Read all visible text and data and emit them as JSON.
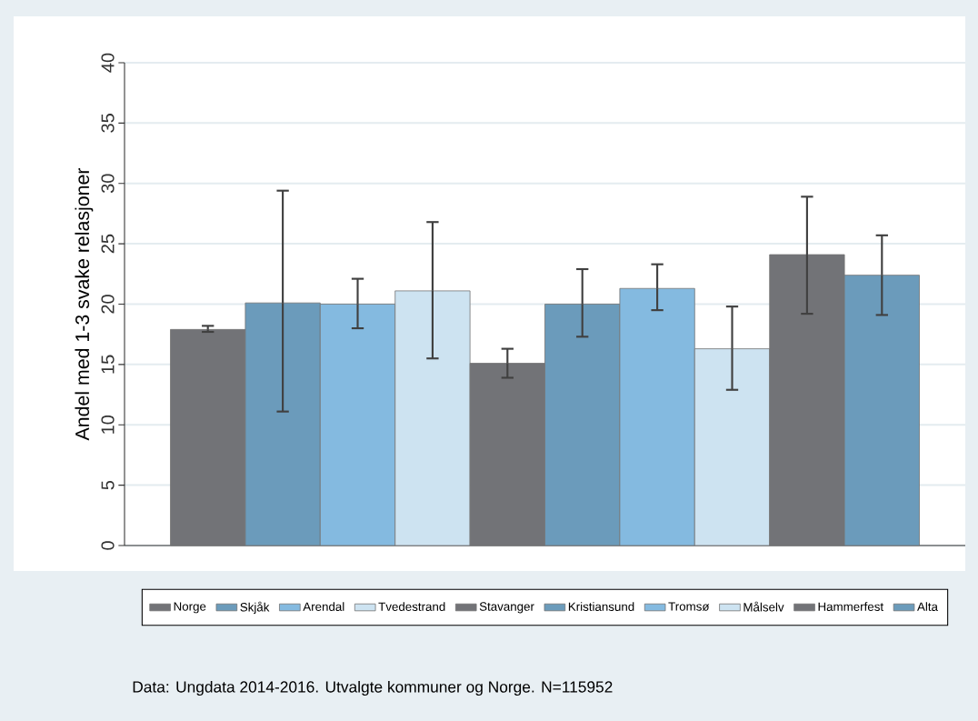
{
  "chart_data": {
    "type": "bar",
    "ylabel": "Andel med 1-3 svake relasjoner",
    "categories": [
      null
    ],
    "series": [
      {
        "name": "Norge",
        "color": "#727377",
        "values": [
          17.9
        ],
        "errors": [
          [
            17.7,
            18.2
          ]
        ]
      },
      {
        "name": "Skjåk",
        "color": "#6b9bbb",
        "values": [
          20.1
        ],
        "errors": [
          [
            11.1,
            29.4
          ]
        ]
      },
      {
        "name": "Arendal",
        "color": "#84bae0",
        "values": [
          20.0
        ],
        "errors": [
          [
            18.0,
            22.1
          ]
        ]
      },
      {
        "name": "Tvedestrand",
        "color": "#cde3f1",
        "values": [
          21.1
        ],
        "errors": [
          [
            15.5,
            26.8
          ]
        ]
      },
      {
        "name": "Stavanger",
        "color": "#727377",
        "values": [
          15.1
        ],
        "errors": [
          [
            13.9,
            16.3
          ]
        ]
      },
      {
        "name": "Kristiansund",
        "color": "#6b9bbb",
        "values": [
          20.0
        ],
        "errors": [
          [
            17.3,
            22.9
          ]
        ]
      },
      {
        "name": "Tromsø",
        "color": "#84bae0",
        "values": [
          21.3
        ],
        "errors": [
          [
            19.5,
            23.3
          ]
        ]
      },
      {
        "name": "Målselv",
        "color": "#cde3f1",
        "values": [
          16.3
        ],
        "errors": [
          [
            12.9,
            19.8
          ]
        ]
      },
      {
        "name": "Hammerfest",
        "color": "#727377",
        "values": [
          24.1
        ],
        "errors": [
          [
            19.2,
            28.9
          ]
        ]
      },
      {
        "name": "Alta",
        "color": "#6b9bbb",
        "values": [
          22.4
        ],
        "errors": [
          [
            19.1,
            25.7
          ]
        ]
      }
    ],
    "ylim": [
      0,
      40
    ],
    "yticks": [
      0,
      5,
      10,
      15,
      20,
      25,
      30,
      35,
      40
    ],
    "grid": "y",
    "legend": "bottom",
    "annotations": [
      "Data: Ungdata 2014-2016. Utvalgte kommuner og Norge. N=115952"
    ]
  }
}
